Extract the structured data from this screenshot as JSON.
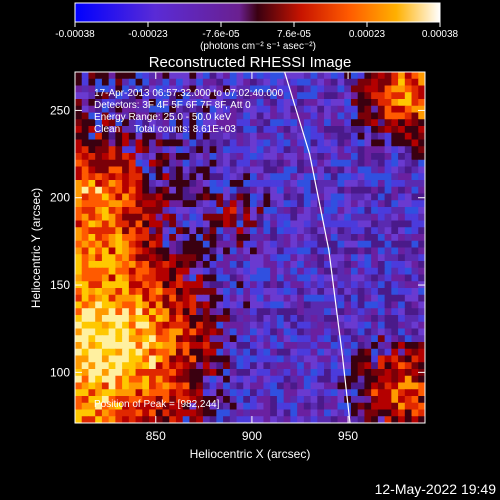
{
  "colorbar": {
    "ticks": [
      "-0.00038",
      "-0.00023",
      "-7.6e-05",
      "7.6e-05",
      "0.00023",
      "0.00038"
    ],
    "unit_label": "(photons cm⁻² s⁻¹ asec⁻²)",
    "range": [
      -0.00038,
      0.00038
    ]
  },
  "info": {
    "line1": "17-Apr-2013 06:57:32.000 to 07:02:40.000",
    "line2": "Detectors: 3F 4F 5F 6F 7F 8F, Att 0",
    "line3": "Energy Range: 25.0 - 50.0 keV",
    "line4": "Clean     Total counts: 8.61E+03",
    "peak": "Position of Peak = [982,244]"
  },
  "footer": {
    "date": "12-May-2022 19:49"
  },
  "chart_data": {
    "type": "heatmap",
    "title": "Reconstructed RHESSI Image",
    "xlabel": "Heliocentric X (arcsec)",
    "ylabel": "Heliocentric Y (arcsec)",
    "xlim": [
      808,
      990
    ],
    "ylim": [
      71,
      272
    ],
    "xticks": [
      "850",
      "900",
      "950"
    ],
    "yticks": [
      "100",
      "150",
      "200",
      "250"
    ],
    "colormap": "blue-purple-red-yellow-white",
    "peak_position": [
      982,
      244
    ],
    "limb_curve": [
      [
        917,
        272
      ],
      [
        930,
        225
      ],
      [
        940,
        170
      ],
      [
        947,
        110
      ],
      [
        951,
        71
      ]
    ]
  }
}
